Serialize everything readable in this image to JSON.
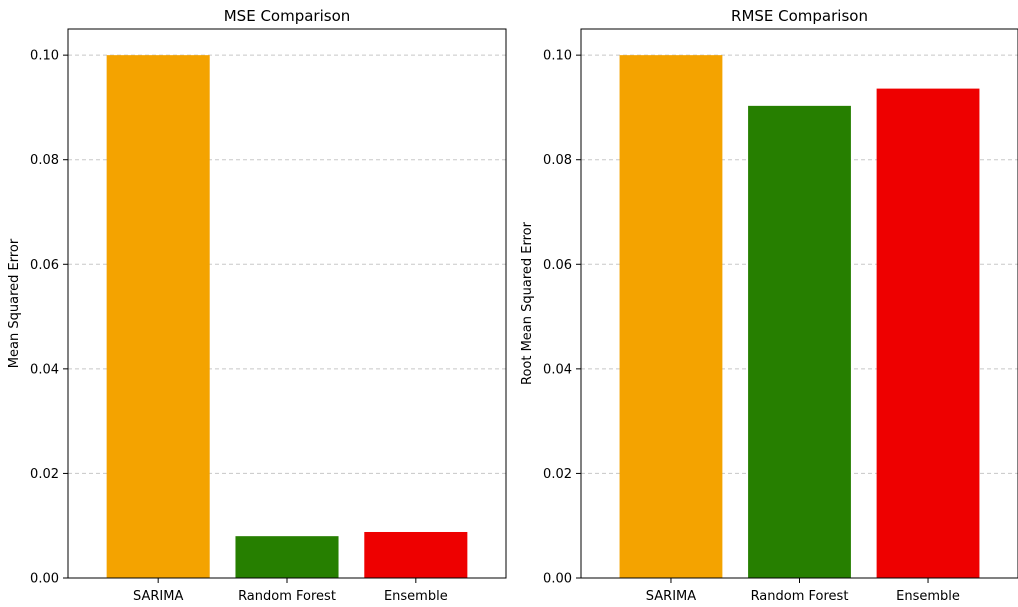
{
  "chart_data": [
    {
      "type": "bar",
      "title": "MSE Comparison",
      "xlabel": "",
      "ylabel": "Mean Squared Error",
      "categories": [
        "SARIMA",
        "Random Forest",
        "Ensemble"
      ],
      "values": [
        0.1,
        0.008,
        0.0088
      ],
      "colors": [
        "#f4a300",
        "#267f00",
        "#ee0000"
      ],
      "ylim": [
        0,
        0.105
      ],
      "yticks": [
        0.0,
        0.02,
        0.04,
        0.06,
        0.08,
        0.1
      ],
      "ytick_labels": [
        "0.00",
        "0.02",
        "0.04",
        "0.06",
        "0.08",
        "0.10"
      ],
      "grid": "y-dashed"
    },
    {
      "type": "bar",
      "title": "RMSE Comparison",
      "xlabel": "",
      "ylabel": "Root Mean Squared Error",
      "categories": [
        "SARIMA",
        "Random Forest",
        "Ensemble"
      ],
      "values": [
        0.1,
        0.0903,
        0.0936
      ],
      "colors": [
        "#f4a300",
        "#267f00",
        "#ee0000"
      ],
      "ylim": [
        0,
        0.105
      ],
      "yticks": [
        0.0,
        0.02,
        0.04,
        0.06,
        0.08,
        0.1
      ],
      "ytick_labels": [
        "0.00",
        "0.02",
        "0.04",
        "0.06",
        "0.08",
        "0.10"
      ],
      "grid": "y-dashed"
    }
  ]
}
